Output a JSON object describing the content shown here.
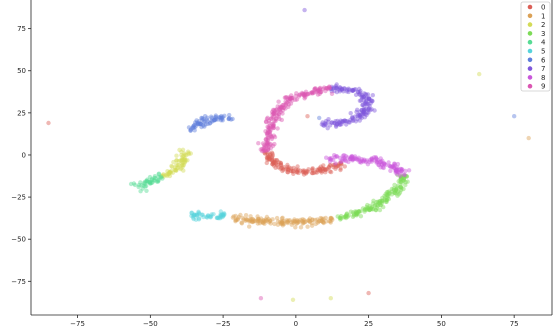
{
  "chart_data": {
    "type": "scatter",
    "title": "",
    "xlabel": "",
    "ylabel": "",
    "xlim": [
      -91,
      88
    ],
    "ylim": [
      -95,
      92
    ],
    "x_ticks": [
      -75,
      -50,
      -25,
      0,
      25,
      50,
      75
    ],
    "x_tick_labels": [
      "−75",
      "−50",
      "−25",
      "0",
      "25",
      "50",
      "75"
    ],
    "y_ticks": [
      -75,
      -50,
      -25,
      0,
      25,
      50,
      75
    ],
    "y_tick_labels": [
      "−75",
      "−50",
      "−25",
      "0",
      "25",
      "50",
      "75"
    ],
    "grid": false,
    "legend_placement": "top-right",
    "series": [
      {
        "name": "0",
        "color": "#db5f57",
        "path": [
          [
            -10,
            2
          ],
          [
            -8,
            -5
          ],
          [
            -3,
            -9
          ],
          [
            4,
            -10
          ],
          [
            10,
            -9
          ],
          [
            16,
            -5
          ]
        ],
        "outliers": [
          [
            -85,
            19
          ],
          [
            4,
            23
          ],
          [
            25,
            -82
          ]
        ]
      },
      {
        "name": "1",
        "color": "#dba157",
        "path": [
          [
            -22,
            -37
          ],
          [
            -12,
            -39
          ],
          [
            -2,
            -40
          ],
          [
            8,
            -39
          ],
          [
            13,
            -38
          ]
        ],
        "outliers": [
          [
            80,
            10
          ]
        ]
      },
      {
        "name": "2",
        "color": "#d3db57",
        "path": [
          [
            -38,
            3
          ],
          [
            -39,
            -4
          ],
          [
            -42,
            -9
          ],
          [
            -46,
            -12
          ]
        ],
        "outliers": [
          [
            -1,
            -86
          ],
          [
            12,
            -85
          ],
          [
            63,
            48
          ]
        ]
      },
      {
        "name": "3",
        "color": "#7ddb57",
        "path": [
          [
            14,
            -37
          ],
          [
            22,
            -34
          ],
          [
            28,
            -30
          ],
          [
            34,
            -22
          ],
          [
            38,
            -12
          ]
        ],
        "outliers": []
      },
      {
        "name": "4",
        "color": "#57db94",
        "path": [
          [
            -46,
            -12
          ],
          [
            -52,
            -17
          ],
          [
            -55,
            -19
          ]
        ],
        "outliers": []
      },
      {
        "name": "5",
        "color": "#57d3db",
        "path": [
          [
            -36,
            -36
          ],
          [
            -30,
            -36
          ],
          [
            -24,
            -36
          ]
        ],
        "outliers": []
      },
      {
        "name": "6",
        "color": "#5f7edb",
        "path": [
          [
            -37,
            15
          ],
          [
            -33,
            19
          ],
          [
            -28,
            22
          ],
          [
            -22,
            22
          ]
        ],
        "outliers": [
          [
            75,
            23
          ],
          [
            8,
            22
          ]
        ]
      },
      {
        "name": "7",
        "color": "#7f57db",
        "path": [
          [
            9,
            18
          ],
          [
            16,
            19
          ],
          [
            24,
            25
          ],
          [
            25,
            33
          ],
          [
            20,
            39
          ],
          [
            12,
            40
          ]
        ],
        "outliers": [
          [
            3,
            86
          ]
        ]
      },
      {
        "name": "8",
        "color": "#c957db",
        "path": [
          [
            11,
            -3
          ],
          [
            20,
            -2
          ],
          [
            28,
            -4
          ],
          [
            34,
            -7
          ],
          [
            37,
            -13
          ]
        ],
        "outliers": []
      },
      {
        "name": "9",
        "color": "#db57b2",
        "path": [
          [
            -10,
            2
          ],
          [
            -9,
            12
          ],
          [
            -8,
            22
          ],
          [
            -4,
            30
          ],
          [
            0,
            35
          ],
          [
            8,
            38
          ],
          [
            12,
            40
          ]
        ],
        "outliers": [
          [
            -12,
            -85
          ]
        ]
      }
    ]
  }
}
